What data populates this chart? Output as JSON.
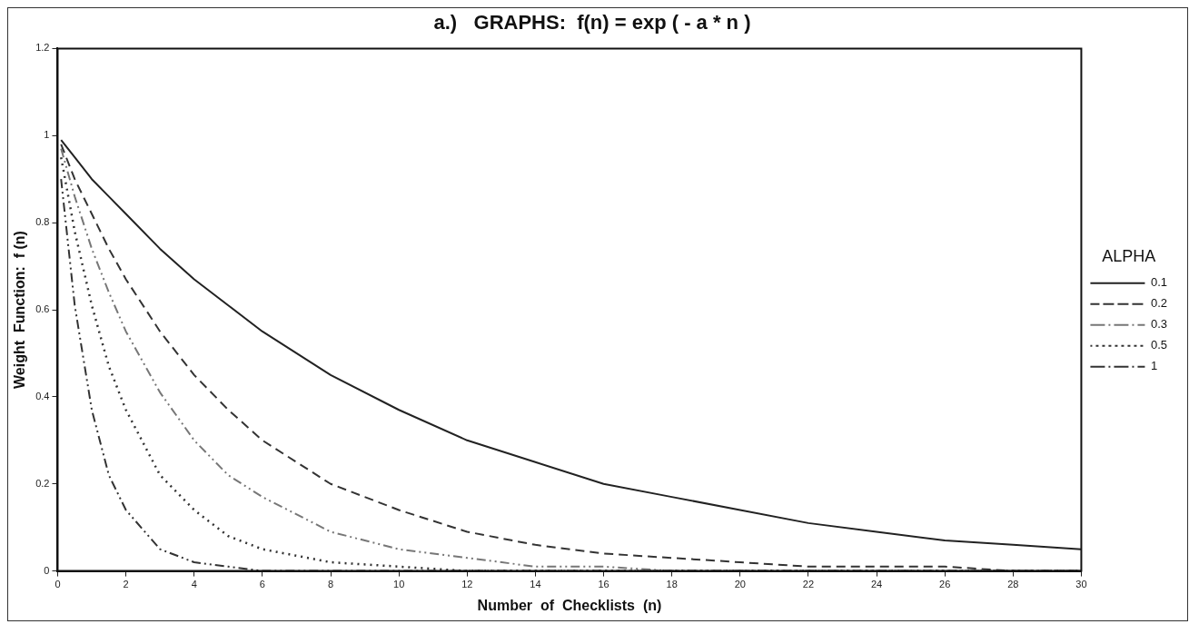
{
  "chart_data": {
    "type": "line",
    "title": "a.)   GRAPHS:  f(n) = exp ( - a * n )",
    "xlabel": "Number  of  Checklists  (n)",
    "ylabel": "Weight  Function:  f (n)",
    "legend_title": "ALPHA",
    "legend": "right",
    "x": [
      0.1,
      0.5,
      1,
      1.5,
      2,
      3,
      4,
      5,
      6,
      8,
      10,
      12,
      14,
      16,
      18,
      20,
      22,
      24,
      26,
      28,
      30
    ],
    "xlim": [
      0,
      30
    ],
    "xticks": [
      0,
      2,
      4,
      6,
      8,
      10,
      12,
      14,
      16,
      18,
      20,
      22,
      24,
      26,
      28,
      30
    ],
    "ylim": [
      0,
      1.2
    ],
    "yticks": [
      0,
      0.2,
      0.4,
      0.6,
      0.8,
      1,
      1.2
    ],
    "grid": false,
    "marker": "none",
    "series": [
      {
        "name": "0.1",
        "color": "#222222",
        "line_style": "solid",
        "values": [
          0.99,
          0.95,
          0.9,
          0.86,
          0.82,
          0.74,
          0.67,
          0.61,
          0.55,
          0.45,
          0.37,
          0.3,
          0.25,
          0.2,
          0.17,
          0.14,
          0.11,
          0.09,
          0.07,
          0.06,
          0.05
        ]
      },
      {
        "name": "0.2",
        "color": "#333333",
        "line_style": "dashed",
        "values": [
          0.98,
          0.9,
          0.82,
          0.74,
          0.67,
          0.55,
          0.45,
          0.37,
          0.3,
          0.2,
          0.14,
          0.09,
          0.06,
          0.04,
          0.03,
          0.02,
          0.01,
          0.01,
          0.01,
          0,
          0
        ]
      },
      {
        "name": "0.3",
        "color": "#777777",
        "line_style": "dashdot",
        "values": [
          0.97,
          0.86,
          0.74,
          0.64,
          0.55,
          0.41,
          0.3,
          0.22,
          0.17,
          0.09,
          0.05,
          0.03,
          0.01,
          0.01,
          0,
          0,
          0,
          0,
          0,
          0,
          0
        ]
      },
      {
        "name": "0.5",
        "color": "#333333",
        "line_style": "dotted",
        "values": [
          0.95,
          0.78,
          0.61,
          0.47,
          0.37,
          0.22,
          0.14,
          0.08,
          0.05,
          0.02,
          0.01,
          0,
          0,
          0,
          0,
          0,
          0,
          0,
          0,
          0,
          0
        ]
      },
      {
        "name": "1",
        "color": "#333333",
        "line_style": "dashdot",
        "values": [
          0.9,
          0.61,
          0.37,
          0.22,
          0.14,
          0.05,
          0.02,
          0.01,
          0,
          0,
          0,
          0,
          0,
          0,
          0,
          0,
          0,
          0,
          0,
          0,
          0
        ]
      }
    ]
  }
}
